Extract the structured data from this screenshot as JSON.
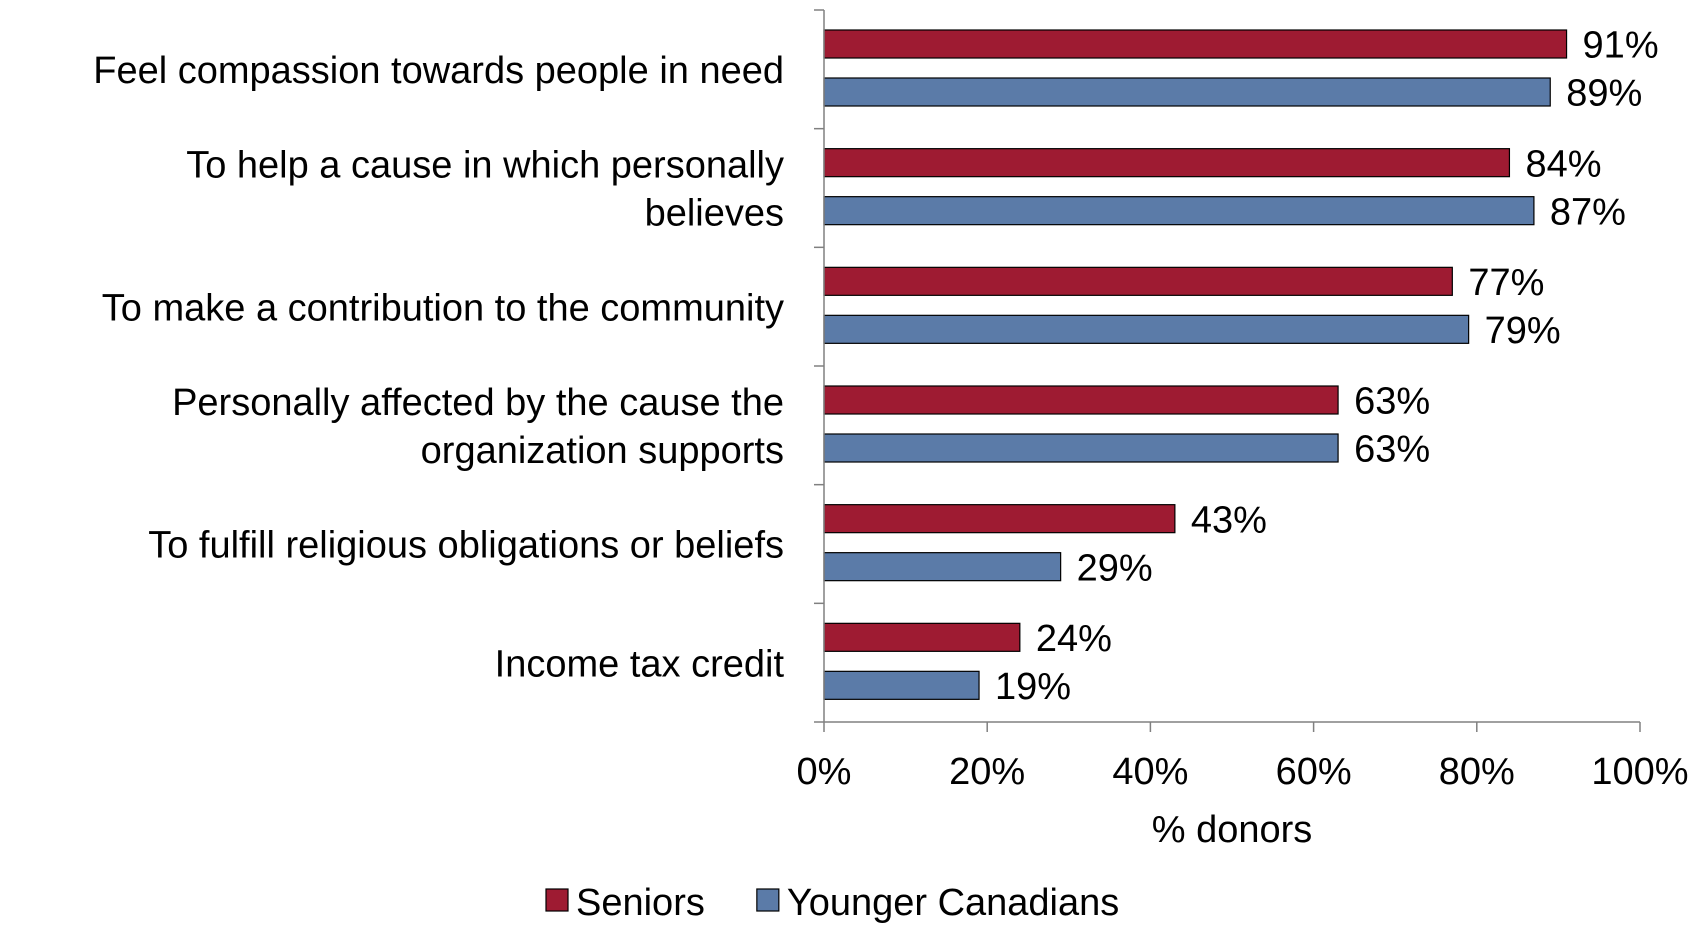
{
  "chart_data": {
    "type": "bar",
    "orientation": "horizontal",
    "categories": [
      [
        "Feel compassion towards people in need"
      ],
      [
        "To help a cause in which personally",
        "believes"
      ],
      [
        "To make a contribution to the community"
      ],
      [
        "Personally affected by the cause the",
        "organization supports"
      ],
      [
        "To fulfill religious obligations or beliefs"
      ],
      [
        "Income tax credit"
      ]
    ],
    "series": [
      {
        "name": "Seniors",
        "color": "#9E1B32",
        "values": [
          91,
          84,
          77,
          63,
          43,
          24
        ]
      },
      {
        "name": "Younger Canadians",
        "color": "#5B7BA8",
        "values": [
          89,
          87,
          79,
          63,
          29,
          19
        ]
      }
    ],
    "value_suffix": "%",
    "xlabel": "% donors",
    "xlim": [
      0,
      100
    ],
    "xticks": [
      0,
      20,
      40,
      60,
      80,
      100
    ],
    "xtick_labels": [
      "0%",
      "20%",
      "40%",
      "60%",
      "80%",
      "100%"
    ],
    "grid": false,
    "legend_position": "bottom"
  }
}
